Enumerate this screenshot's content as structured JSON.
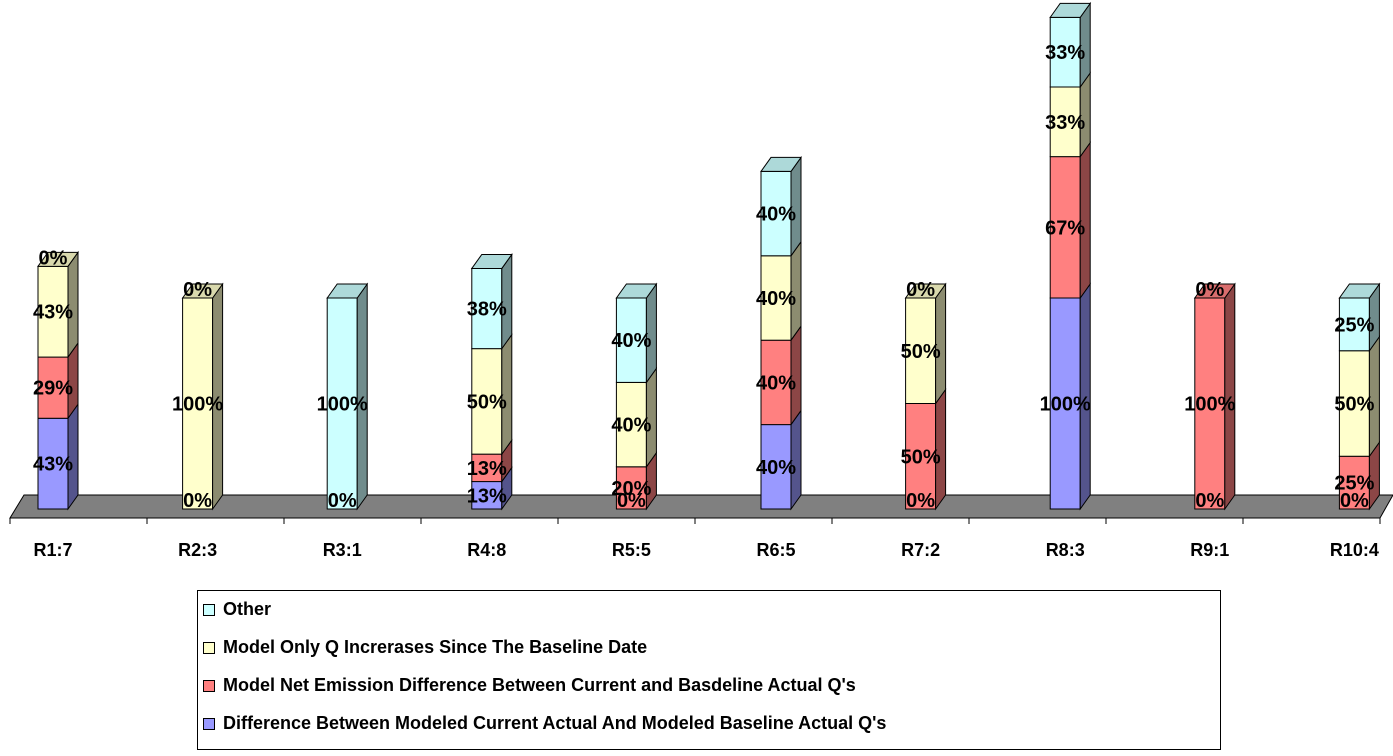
{
  "chart_data": {
    "type": "bar",
    "stacked": true,
    "three_d": true,
    "categories": [
      "R1:7",
      "R2:3",
      "R3:1",
      "R4:8",
      "R5:5",
      "R6:5",
      "R7:2",
      "R8:3",
      "R9:1",
      "R10:4"
    ],
    "series": [
      {
        "name": "Difference Between Modeled Current Actual And Modeled Baseline Actual Q's",
        "color": "#9999ff",
        "values": [
          0.43,
          0,
          0,
          0.13,
          0,
          0.4,
          0,
          1.0,
          0,
          0
        ],
        "labels": [
          "43%",
          "0%",
          "0%",
          "13%",
          "0%",
          "40%",
          "0%",
          "100%",
          "0%",
          "0%"
        ]
      },
      {
        "name": "Model Net Emission Difference Between Current and Basdeline Actual Q's",
        "color": "#ff8080",
        "values": [
          0.29,
          0,
          0,
          0.13,
          0.2,
          0.4,
          0.5,
          0.67,
          1.0,
          0.25
        ],
        "labels": [
          "29%",
          "",
          "",
          "13%",
          "20%",
          "40%",
          "50%",
          "67%",
          "100%",
          "25%"
        ]
      },
      {
        "name": "Model Only Q Increrases Since The Baseline Date",
        "color": "#ffffcc",
        "values": [
          0.43,
          1.0,
          0,
          0.5,
          0.4,
          0.4,
          0.5,
          0.33,
          0,
          0.5
        ],
        "labels": [
          "43%",
          "100%",
          "",
          "50%",
          "40%",
          "40%",
          "50%",
          "33%",
          "0%",
          "50%"
        ]
      },
      {
        "name": "Other",
        "color": "#ccffff",
        "values": [
          0,
          0,
          1.0,
          0.38,
          0.4,
          0.4,
          0,
          0.33,
          0,
          0.25
        ],
        "labels": [
          "0%",
          "0%",
          "100%",
          "38%",
          "40%",
          "40%",
          "0%",
          "33%",
          "",
          "25%"
        ]
      }
    ],
    "legend": {
      "placement": "bottom",
      "order": [
        "Other",
        "Model Only Q Increrases Since The Baseline Date",
        "Model Net Emission Difference Between Current and Basdeline Actual Q's",
        "Difference Between Modeled Current Actual And Modeled Baseline Actual Q's"
      ]
    },
    "title": "",
    "xlabel": "",
    "ylabel": "",
    "grid": false
  }
}
